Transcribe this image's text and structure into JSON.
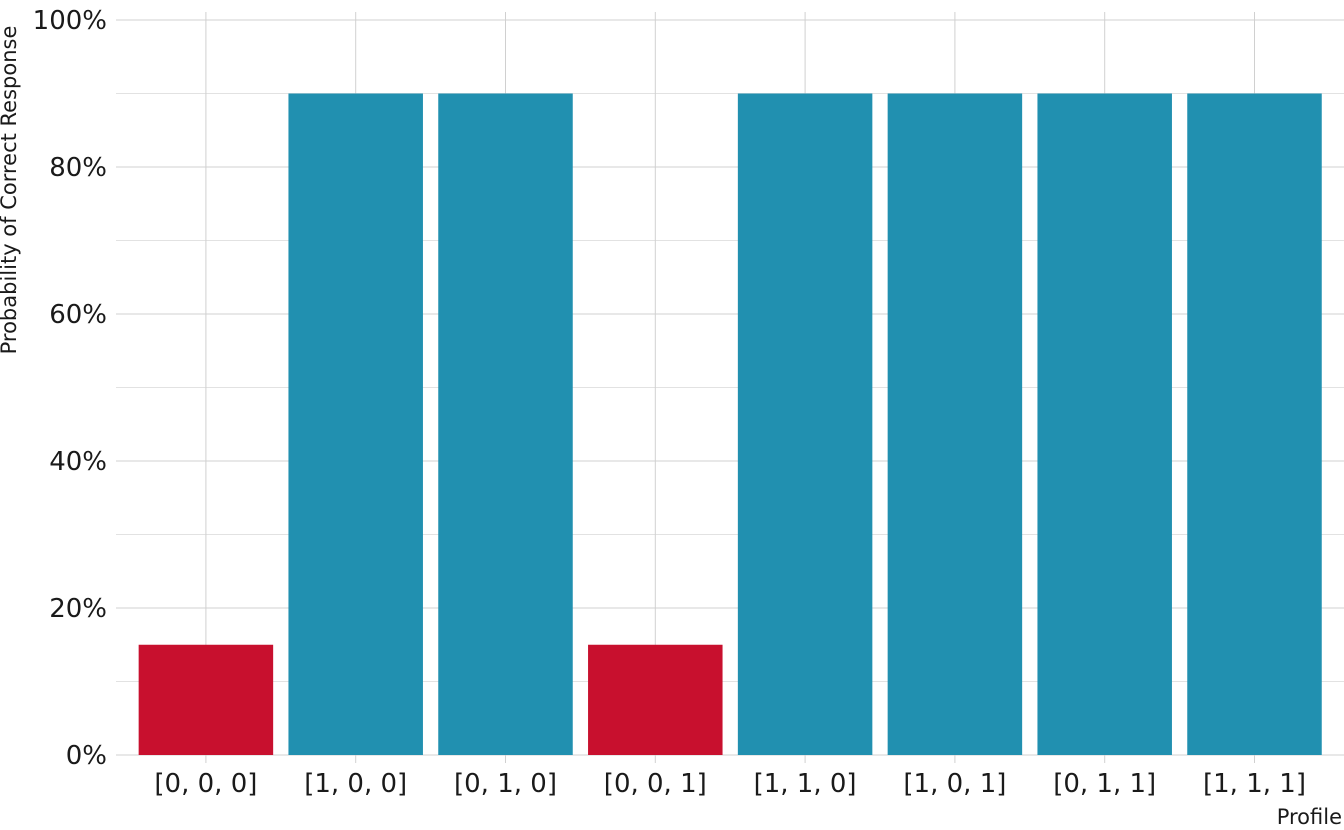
{
  "chart_data": {
    "type": "bar",
    "categories": [
      "[0, 0, 0]",
      "[1, 0, 0]",
      "[0, 1, 0]",
      "[0, 0, 1]",
      "[1, 1, 0]",
      "[1, 0, 1]",
      "[0, 1, 1]",
      "[1, 1, 1]"
    ],
    "values": [
      0.15,
      0.9,
      0.9,
      0.15,
      0.9,
      0.9,
      0.9,
      0.9
    ],
    "bar_colors": [
      "#C8102E",
      "#2190B0",
      "#2190B0",
      "#C8102E",
      "#2190B0",
      "#2190B0",
      "#2190B0",
      "#2190B0"
    ],
    "xlabel": "Profile",
    "ylabel": "Probability of Correct Response",
    "ylim": [
      0,
      1
    ],
    "y_ticks": [
      0,
      0.2,
      0.4,
      0.6,
      0.8,
      1.0
    ],
    "y_tick_labels": [
      "0%",
      "20%",
      "40%",
      "60%",
      "80%",
      "100%"
    ],
    "y_minor_ticks": [
      0.1,
      0.3,
      0.5,
      0.7,
      0.9
    ],
    "grid": true,
    "legend": false
  }
}
